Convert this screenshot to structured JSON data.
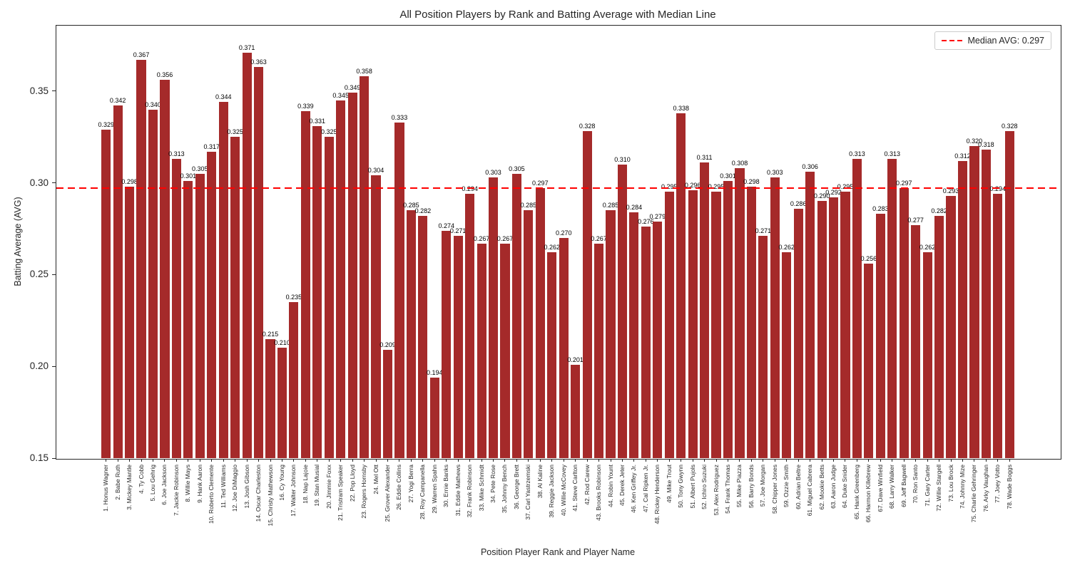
{
  "chart_data": {
    "type": "bar",
    "title": "All Position Players by Rank and Batting Average with Median Line",
    "xlabel": "Position Player Rank and Player Name",
    "ylabel": "Batting Average (AVG)",
    "legend_label": "Median AVG: 0.297",
    "legend_position": "upper right",
    "grid": false,
    "bar_color": "#A52A2A",
    "median_value": 0.297,
    "median_color": "#FF0000",
    "median_style": "dashed",
    "ylim": [
      0.15,
      0.386
    ],
    "yticks": [
      0.15,
      0.2,
      0.25,
      0.3,
      0.35
    ],
    "ytick_labels": [
      "0.15",
      "0.20",
      "0.25",
      "0.30",
      "0.35"
    ],
    "categories": [
      "1. Honus Wagner",
      "2. Babe Ruth",
      "3. Mickey Mantle",
      "4. Ty Cobb",
      "5. Lou Gehrig",
      "6. Joe Jackson",
      "7. Jackie Robinson",
      "8. Willie Mays",
      "9. Hank Aaron",
      "10. Roberto Clemente",
      "11. Ted Williams",
      "12. Joe DiMaggio",
      "13. Josh Gibson",
      "14. Oscar Charleston",
      "15. Christy Mathewson",
      "16. Cy Young",
      "17. Walter Johnson",
      "18. Nap Lajoie",
      "19. Stan Musial",
      "20. Jimmie Foxx",
      "21. Tristram Speaker",
      "22. Pop Lloyd",
      "23. Rogers Hornsby",
      "24. Mel Ott",
      "25. Grover Alexander",
      "26. Eddie Collins",
      "27. Yogi Berra",
      "28. Roy Campanella",
      "29. Warren Spahn",
      "30. Ernie Banks",
      "31. Eddie Mathews",
      "32. Frank Robinson",
      "33. Mike Schmidt",
      "34. Pete Rose",
      "35. Johnny Bench",
      "36. George Brett",
      "37. Carl Yastrzemski",
      "38. Al Kaline",
      "39. Reggie Jackson",
      "40. Willie McCovey",
      "41. Steve Carlton",
      "42. Rod Carew",
      "43. Brooks Robinson",
      "44. Robin Yount",
      "45. Derek Jeter",
      "46. Ken Griffey Jr.",
      "47. Cal Ripken Jr.",
      "48. Rickey Henderson",
      "49. Mike Trout",
      "50. Tony Gwynn",
      "51. Albert Pujols",
      "52. Ichiro Suzuki",
      "53. Alex Rodriguez",
      "54. Frank Thomas",
      "55. Mike Piazza",
      "56. Barry Bonds",
      "57. Joe Morgan",
      "58. Chipper Jones",
      "59. Ozzie Smith",
      "60. Adrian Beltre",
      "61. Miguel Cabrera",
      "62. Mookie Betts",
      "63. Aaron Judge",
      "64. Duke Snider",
      "65. Hank Greenberg",
      "66. Harmon Killebrew",
      "67. Dave Winfield",
      "68. Larry Walker",
      "69. Jeff Bagwell",
      "70. Ron Santo",
      "71. Gary Carter",
      "72. Willie Stargell",
      "73. Lou Brock",
      "74. Johnny Mize",
      "75. Charlie Gehringer",
      "76. Arky Vaughan",
      "77. Joey Votto",
      "78. Wade Boggs"
    ],
    "values": [
      0.329,
      0.342,
      0.298,
      0.367,
      0.34,
      0.356,
      0.313,
      0.301,
      0.305,
      0.317,
      0.344,
      0.325,
      0.371,
      0.363,
      0.215,
      0.21,
      0.235,
      0.339,
      0.331,
      0.325,
      0.345,
      0.349,
      0.358,
      0.304,
      0.209,
      0.333,
      0.285,
      0.282,
      0.194,
      0.274,
      0.271,
      0.294,
      0.267,
      0.303,
      0.267,
      0.305,
      0.285,
      0.297,
      0.262,
      0.27,
      0.201,
      0.328,
      0.267,
      0.285,
      0.31,
      0.284,
      0.276,
      0.279,
      0.295,
      0.338,
      0.296,
      0.311,
      0.295,
      0.301,
      0.308,
      0.298,
      0.271,
      0.303,
      0.262,
      0.286,
      0.306,
      0.29,
      0.292,
      0.295,
      0.313,
      0.256,
      0.283,
      0.313,
      0.297,
      0.277,
      0.262,
      0.282,
      0.293,
      0.312,
      0.32,
      0.318,
      0.294,
      0.328
    ]
  }
}
